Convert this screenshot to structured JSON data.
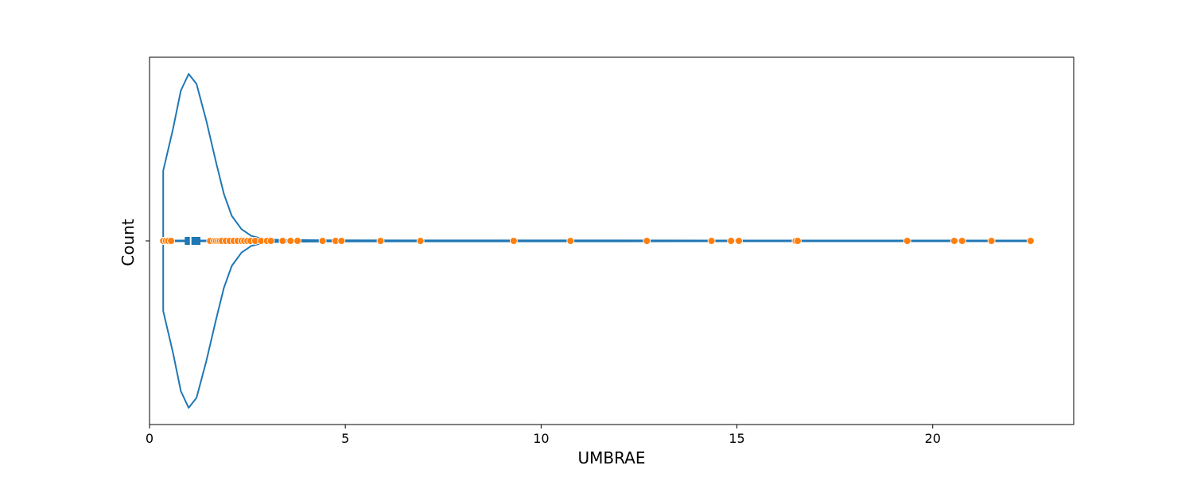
{
  "chart_data": {
    "type": "violin",
    "orientation": "horizontal",
    "title": "",
    "xlabel": "UMBRAE",
    "ylabel": "Count",
    "xlim": [
      0,
      23.6
    ],
    "xticks": [
      0,
      5,
      10,
      15,
      20
    ],
    "xtick_labels": [
      "0",
      "5",
      "10",
      "15",
      "20"
    ],
    "grid": false,
    "legend": "none",
    "colors": {
      "violin": "#1f77b4",
      "points": "#ff7f0e",
      "point_edge": "#ffffff",
      "frame": "#000000"
    },
    "box": {
      "q1": 0.9,
      "median": 1.05,
      "q3": 1.3,
      "whisker_low": 0.35,
      "whisker_high": 22.5
    },
    "density_profile": [
      [
        0.35,
        0.42
      ],
      [
        0.6,
        0.67
      ],
      [
        0.8,
        0.9
      ],
      [
        1.0,
        1.0
      ],
      [
        1.2,
        0.94
      ],
      [
        1.45,
        0.72
      ],
      [
        1.7,
        0.47
      ],
      [
        1.9,
        0.28
      ],
      [
        2.1,
        0.15
      ],
      [
        2.35,
        0.07
      ],
      [
        2.6,
        0.03
      ],
      [
        2.9,
        0.012
      ],
      [
        3.3,
        0.006
      ],
      [
        4.5,
        0.004
      ],
      [
        7.0,
        0.003
      ],
      [
        12.0,
        0.003
      ],
      [
        17.0,
        0.0025
      ],
      [
        20.0,
        0.0015
      ],
      [
        22.5,
        0.001
      ]
    ],
    "points": [
      0.35,
      0.42,
      0.48,
      0.55,
      1.55,
      1.65,
      1.7,
      1.75,
      1.8,
      1.85,
      1.95,
      2.05,
      2.15,
      2.25,
      2.35,
      2.42,
      2.5,
      2.58,
      2.7,
      2.85,
      3.0,
      3.1,
      3.4,
      3.6,
      3.78,
      4.42,
      4.75,
      4.9,
      5.9,
      6.92,
      9.3,
      10.75,
      12.7,
      14.35,
      14.85,
      15.05,
      16.5,
      16.55,
      19.35,
      20.55,
      20.75,
      21.5,
      22.5
    ]
  }
}
